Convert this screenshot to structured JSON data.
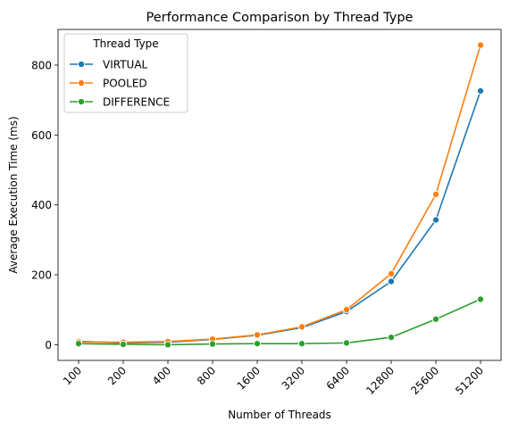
{
  "chart_data": {
    "type": "line",
    "title": "Performance Comparison by Thread Type",
    "xlabel": "Number of Threads",
    "ylabel": "Average Execution Time (ms)",
    "categories": [
      "100",
      "200",
      "400",
      "800",
      "1600",
      "3200",
      "6400",
      "12800",
      "25600",
      "51200"
    ],
    "ylim": [
      -45,
      902
    ],
    "yticks": [
      "0",
      "200",
      "400",
      "600",
      "800"
    ],
    "legend": {
      "title": "Thread Type",
      "placement": "top-left"
    },
    "grid": false,
    "series": [
      {
        "name": "VIRTUAL",
        "color": "#1f77b4",
        "values": [
          10,
          5,
          7,
          15,
          27,
          49,
          95,
          181,
          357,
          726
        ]
      },
      {
        "name": "POOLED",
        "color": "#ff7f0e",
        "values": [
          8,
          7,
          9,
          16,
          28,
          51,
          100,
          203,
          430,
          857
        ]
      },
      {
        "name": "DIFFERENCE",
        "color": "#2ca02c",
        "values": [
          3,
          1,
          0,
          2,
          3,
          3,
          5,
          21,
          73,
          130
        ]
      }
    ]
  }
}
